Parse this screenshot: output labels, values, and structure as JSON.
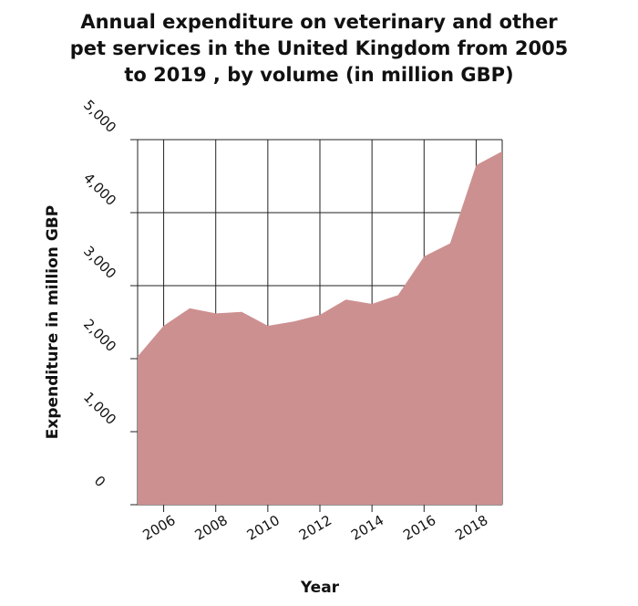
{
  "chart_data": {
    "type": "area",
    "title_lines": [
      "Annual expenditure on veterinary and other",
      "pet services in the United Kingdom from 2005",
      "to 2019 , by volume (in million GBP)"
    ],
    "xlabel": "Year",
    "ylabel": "Expenditure in million GBP",
    "x": [
      2005,
      2006,
      2007,
      2008,
      2009,
      2010,
      2011,
      2012,
      2013,
      2014,
      2015,
      2016,
      2017,
      2018,
      2019
    ],
    "series": [
      {
        "values": [
          2030,
          2450,
          2690,
          2620,
          2640,
          2450,
          2510,
          2600,
          2810,
          2750,
          2870,
          3400,
          3580,
          4650,
          4840
        ],
        "color": "#cd9090"
      }
    ],
    "xlim": [
      2005,
      2019
    ],
    "ylim": [
      0,
      5000
    ],
    "x_ticks": [
      "2006",
      "2008",
      "2010",
      "2012",
      "2014",
      "2016",
      "2018"
    ],
    "x_tick_values": [
      2006,
      2008,
      2010,
      2012,
      2014,
      2016,
      2018
    ],
    "y_ticks": [
      "0",
      "1,000",
      "2,000",
      "3,000",
      "4,000",
      "5,000"
    ],
    "y_tick_values": [
      0,
      1000,
      2000,
      3000,
      4000,
      5000
    ],
    "grid": true
  }
}
